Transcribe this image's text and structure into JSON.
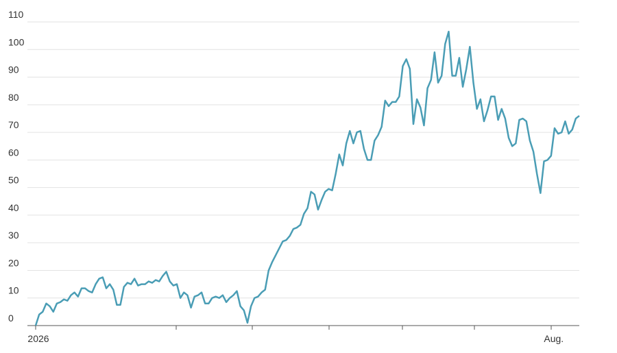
{
  "chart_data": {
    "type": "line",
    "color": "#4a9db5",
    "grid": true,
    "ylim": [
      0,
      110
    ],
    "yticks": [
      0,
      10,
      20,
      30,
      40,
      50,
      60,
      70,
      80,
      90,
      100,
      110
    ],
    "categories": [
      "2026",
      null,
      null,
      null,
      null,
      null,
      null,
      null,
      null,
      null,
      null,
      null,
      null,
      null,
      null,
      null,
      null,
      null,
      null,
      null,
      null,
      null,
      null,
      null,
      null,
      null,
      null,
      null,
      null,
      null,
      null,
      null,
      null,
      null,
      null,
      null,
      null,
      null,
      null,
      null,
      null,
      null,
      null,
      null,
      null,
      null,
      null,
      null,
      null,
      null,
      null,
      null,
      null,
      null,
      null,
      null,
      null,
      null,
      null,
      null,
      null,
      null,
      null,
      null,
      null,
      null,
      null,
      null,
      null,
      null,
      null,
      null,
      null,
      null,
      null,
      null,
      null,
      null,
      null,
      null,
      null,
      null,
      null,
      null,
      null,
      null,
      null,
      null,
      null,
      null,
      null,
      null,
      null,
      null,
      null,
      null,
      null,
      null,
      null,
      null,
      null,
      null,
      null,
      null,
      null,
      null,
      null,
      null,
      null,
      null,
      null,
      null,
      null,
      null,
      null,
      null,
      null,
      null,
      null,
      null,
      null,
      null,
      null,
      null,
      null,
      null,
      null,
      null,
      null,
      null,
      null,
      null,
      null,
      null,
      null,
      null,
      null,
      null,
      null,
      null,
      null,
      null,
      null,
      null,
      null,
      null,
      "Aug.",
      null,
      null,
      null,
      null,
      null,
      null,
      null,
      null
    ],
    "values": [
      0,
      4,
      5,
      8,
      7,
      5,
      8,
      8.5,
      9.5,
      9,
      11,
      12,
      10.5,
      13.5,
      13.5,
      12.5,
      12,
      15,
      17,
      17.5,
      13.5,
      15,
      13,
      7.5,
      7.5,
      14,
      15.5,
      15,
      17,
      14.5,
      15,
      15,
      16,
      15.5,
      16.5,
      16,
      18,
      19.5,
      16,
      14.5,
      15,
      10,
      12,
      11,
      6.5,
      10.5,
      11,
      12,
      8,
      8,
      10,
      10.5,
      10,
      11,
      8.5,
      10,
      11,
      12.5,
      7,
      5.5,
      1,
      7,
      10,
      10.5,
      12,
      13,
      20,
      23,
      25.5,
      28,
      30.5,
      31,
      32.5,
      35,
      35.5,
      36.5,
      40.5,
      42.5,
      48.5,
      47.5,
      42,
      45.5,
      48.5,
      49.5,
      49,
      55,
      62,
      58,
      66,
      70.5,
      66,
      70,
      70.5,
      64,
      60,
      60,
      67,
      69,
      72,
      81.5,
      79.5,
      81,
      81,
      83,
      94,
      96.5,
      93,
      73,
      82,
      79,
      72.5,
      86,
      89,
      99,
      88,
      90.5,
      102,
      106.5,
      90.5,
      90.5,
      97,
      86.5,
      93,
      101,
      88,
      78.5,
      82,
      74,
      78,
      83,
      83,
      74.5,
      78.5,
      75,
      68,
      65,
      66,
      74.5,
      75,
      74,
      67,
      63,
      55,
      48,
      59.5,
      60,
      61.5,
      71.5,
      69.5,
      70,
      74,
      69.5,
      71,
      75,
      76
    ]
  }
}
